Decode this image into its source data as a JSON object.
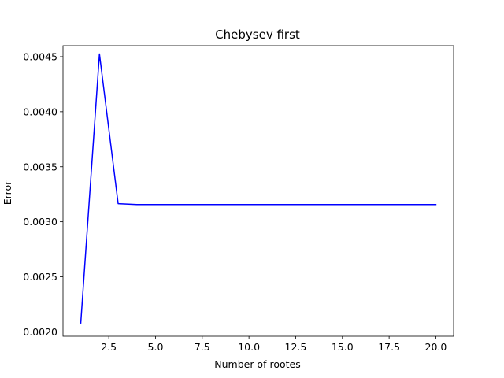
{
  "chart_data": {
    "type": "line",
    "title": "Chebysev first",
    "xlabel": "Number of rootes",
    "ylabel": "Error",
    "xlim": [
      0.05,
      20.95
    ],
    "ylim": [
      0.00196,
      0.0046
    ],
    "grid": false,
    "x_ticks": [
      2.5,
      5.0,
      7.5,
      10.0,
      12.5,
      15.0,
      17.5,
      20.0
    ],
    "x_tick_labels": [
      "2.5",
      "5.0",
      "7.5",
      "10.0",
      "12.5",
      "15.0",
      "17.5",
      "20.0"
    ],
    "y_ticks": [
      0.002,
      0.0025,
      0.003,
      0.0035,
      0.004,
      0.0045
    ],
    "y_tick_labels": [
      "0.0020",
      "0.0025",
      "0.0030",
      "0.0035",
      "0.0040",
      "0.0045"
    ],
    "series": [
      {
        "color": "#0000ff",
        "x": [
          1,
          2,
          3,
          4,
          5,
          6,
          7,
          8,
          9,
          10,
          11,
          12,
          13,
          14,
          15,
          16,
          17,
          18,
          19,
          20
        ],
        "y": [
          0.00208,
          0.004525,
          0.003165,
          0.003157,
          0.003157,
          0.003157,
          0.003157,
          0.003157,
          0.003157,
          0.003157,
          0.003157,
          0.003157,
          0.003157,
          0.003157,
          0.003157,
          0.003157,
          0.003157,
          0.003157,
          0.003157,
          0.003157
        ]
      }
    ]
  }
}
